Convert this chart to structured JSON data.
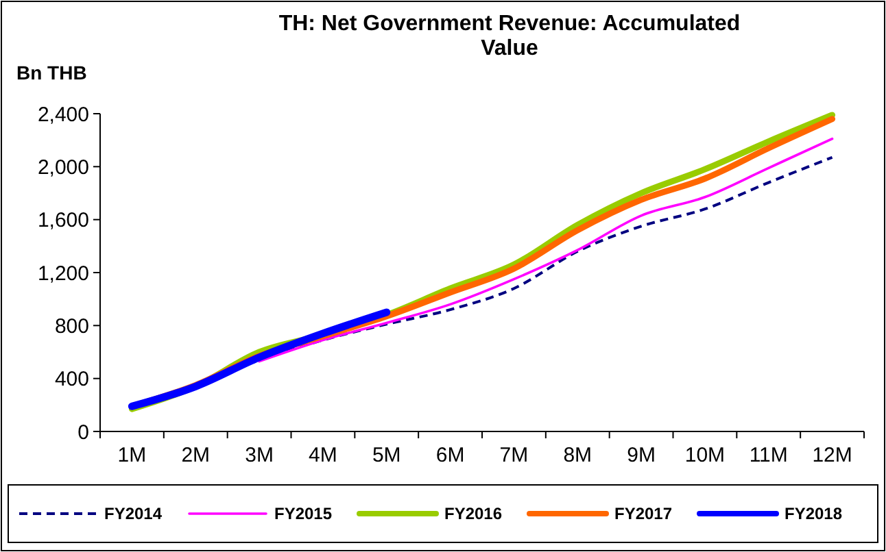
{
  "chart_data": {
    "type": "line",
    "title": "TH: Net Government Revenue: Accumulated Value",
    "ylabel": "Bn THB",
    "categories": [
      "1M",
      "2M",
      "3M",
      "4M",
      "5M",
      "6M",
      "7M",
      "8M",
      "9M",
      "10M",
      "11M",
      "12M"
    ],
    "ylim": [
      0,
      2400
    ],
    "yticks": [
      0,
      {
        "value": 400,
        "label": "400"
      },
      {
        "value": 800,
        "label": "800"
      },
      {
        "value": 1200,
        "label": "1,200"
      },
      {
        "value": 1600,
        "label": "1,600"
      },
      {
        "value": 2000,
        "label": "2,000"
      },
      {
        "value": 2400,
        "label": "2,400"
      }
    ],
    "grid": false,
    "legend": "bottom",
    "series": [
      {
        "name": "FY2014",
        "color": "#000080",
        "line_style": "dashed",
        "values": [
          190,
          340,
          540,
          690,
          810,
          920,
          1080,
          1360,
          1550,
          1680,
          1880,
          2070
        ]
      },
      {
        "name": "FY2015",
        "color": "#ff00ff",
        "values": [
          null,
          null,
          530,
          690,
          820,
          960,
          1150,
          1370,
          1630,
          1770,
          1990,
          2210
        ]
      },
      {
        "name": "FY2016",
        "color": "#99cc00",
        "values": [
          170,
          340,
          600,
          730,
          880,
          1080,
          1260,
          1560,
          1800,
          1980,
          2190,
          2390
        ]
      },
      {
        "name": "FY2017",
        "color": "#ff6600",
        "values": [
          190,
          350,
          570,
          720,
          870,
          1050,
          1230,
          1520,
          1750,
          1910,
          2140,
          2360
        ]
      },
      {
        "name": "FY2018",
        "color": "#0000ff",
        "values": [
          190,
          340,
          560,
          740,
          900,
          null,
          null,
          null,
          null,
          null,
          null,
          null
        ]
      }
    ]
  }
}
